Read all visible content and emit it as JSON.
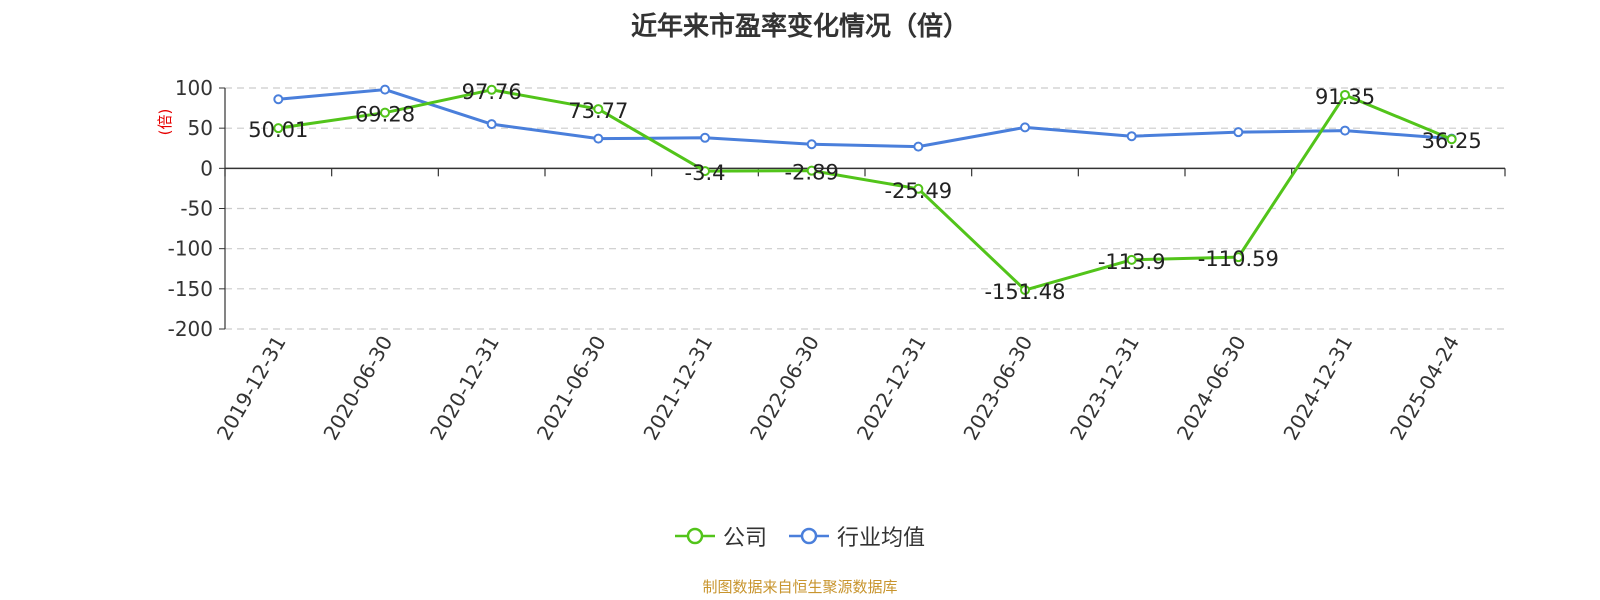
{
  "colors": {
    "company": "#52c41a",
    "industry": "#4a7fdb",
    "axis_unit": "#e60000",
    "source": "#c8952e",
    "grid": "#cccccc",
    "axis": "#333333"
  },
  "chart_data": {
    "type": "line",
    "title": "近年来市盈率变化情况（倍）",
    "ylabel": "(倍)",
    "xlabel": "",
    "categories": [
      "2019-12-31",
      "2020-06-30",
      "2020-12-31",
      "2021-06-30",
      "2021-12-31",
      "2022-06-30",
      "2022-12-31",
      "2023-06-30",
      "2023-12-31",
      "2024-06-30",
      "2024-12-31",
      "2025-04-24"
    ],
    "series": [
      {
        "name": "公司",
        "values": [
          50.01,
          69.28,
          97.76,
          73.77,
          -3.4,
          -2.89,
          -25.49,
          -151.48,
          -113.9,
          -110.59,
          91.35,
          36.25
        ],
        "data_labels": [
          "50.01",
          "69.28",
          "97.76",
          "73.77",
          "-3.4",
          "-2.89",
          "-25.49",
          "-151.48",
          "-113.9",
          "-110.59",
          "91.35",
          "36.25"
        ]
      },
      {
        "name": "行业均值",
        "values": [
          86,
          98,
          55,
          37,
          38,
          30,
          27,
          51,
          40,
          45,
          47,
          37
        ]
      }
    ],
    "ylim": [
      -200,
      100
    ],
    "yticks": [
      100,
      50,
      0,
      -50,
      -100,
      -150,
      -200
    ],
    "ytick_labels": [
      "100",
      "50",
      "0",
      "-50",
      "-100",
      "-150",
      "-200"
    ],
    "grid": true,
    "legend_position": "bottom-center"
  },
  "legend": {
    "company_label": "公司",
    "industry_label": "行业均值"
  },
  "source_text": "制图数据来自恒生聚源数据库"
}
